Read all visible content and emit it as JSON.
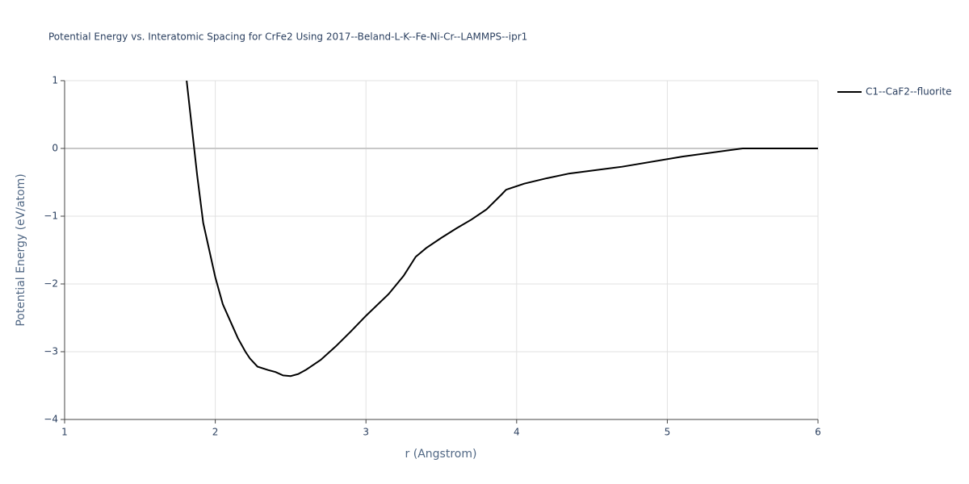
{
  "chart_data": {
    "type": "line",
    "title": "Potential Energy vs. Interatomic Spacing for CrFe2 Using 2017--Beland-L-K--Fe-Ni-Cr--LAMMPS--ipr1",
    "x_label": "r (Angstrom)",
    "y_label": "Potential Energy (eV/atom)",
    "x": [
      1.81,
      1.85,
      1.88,
      1.92,
      1.95,
      2.0,
      2.05,
      2.1,
      2.15,
      2.2,
      2.23,
      2.28,
      2.35,
      2.4,
      2.45,
      2.5,
      2.55,
      2.6,
      2.7,
      2.8,
      2.9,
      3.0,
      3.15,
      3.25,
      3.33,
      3.4,
      3.5,
      3.6,
      3.7,
      3.8,
      3.9,
      3.93,
      4.05,
      4.2,
      4.35,
      4.7,
      5.1,
      5.5,
      6.0
    ],
    "series": [
      {
        "name": "C1--CaF2--fluorite",
        "color": "#000000",
        "values": [
          1.0,
          0.2,
          -0.4,
          -1.1,
          -1.4,
          -1.9,
          -2.3,
          -2.55,
          -2.8,
          -3.0,
          -3.1,
          -3.22,
          -3.27,
          -3.3,
          -3.35,
          -3.36,
          -3.33,
          -3.27,
          -3.12,
          -2.92,
          -2.7,
          -2.47,
          -2.15,
          -1.88,
          -1.6,
          -1.47,
          -1.32,
          -1.18,
          -1.05,
          -0.9,
          -0.68,
          -0.61,
          -0.52,
          -0.44,
          -0.37,
          -0.27,
          -0.12,
          0.0,
          0.0
        ]
      }
    ],
    "xlim": [
      1,
      6
    ],
    "xticks": [
      1,
      2,
      3,
      4,
      5,
      6
    ],
    "ylim": [
      -4,
      1
    ],
    "yticks": [
      {
        "value": -4,
        "label": "−4"
      },
      {
        "value": -3,
        "label": "−3"
      },
      {
        "value": -2,
        "label": "−2"
      },
      {
        "value": -1,
        "label": "−1"
      },
      0,
      1
    ],
    "grid": true,
    "legend": "right"
  }
}
